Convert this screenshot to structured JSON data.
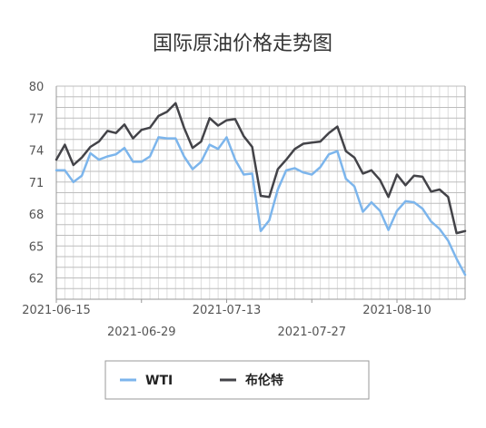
{
  "chart_data": {
    "type": "line",
    "title": "国际原油价格走势图",
    "xlabel": "",
    "ylabel": "",
    "ylim": [
      60,
      80
    ],
    "yticks": [
      80,
      77,
      74,
      71,
      68,
      65,
      62
    ],
    "x_tick_labels": [
      "2021-06-15",
      "2021-06-29",
      "2021-07-13",
      "2021-07-27",
      "2021-08-10"
    ],
    "x_tick_indices": [
      0,
      10,
      20,
      30,
      40
    ],
    "grid": true,
    "legend_position": "bottom",
    "x": [
      "2021-06-15",
      "2021-06-16",
      "2021-06-17",
      "2021-06-18",
      "2021-06-21",
      "2021-06-22",
      "2021-06-23",
      "2021-06-24",
      "2021-06-25",
      "2021-06-28",
      "2021-06-29",
      "2021-06-30",
      "2021-07-01",
      "2021-07-02",
      "2021-07-05",
      "2021-07-06",
      "2021-07-07",
      "2021-07-08",
      "2021-07-09",
      "2021-07-12",
      "2021-07-13",
      "2021-07-14",
      "2021-07-15",
      "2021-07-16",
      "2021-07-19",
      "2021-07-20",
      "2021-07-21",
      "2021-07-22",
      "2021-07-23",
      "2021-07-26",
      "2021-07-27",
      "2021-07-28",
      "2021-07-29",
      "2021-07-30",
      "2021-08-02",
      "2021-08-03",
      "2021-08-04",
      "2021-08-05",
      "2021-08-06",
      "2021-08-09",
      "2021-08-10",
      "2021-08-11",
      "2021-08-12",
      "2021-08-13",
      "2021-08-16",
      "2021-08-17",
      "2021-08-18",
      "2021-08-19",
      "2021-08-20"
    ],
    "series": [
      {
        "name": "WTI",
        "color": "#7cb5ec",
        "values": [
          72.1,
          72.1,
          71.0,
          71.6,
          73.7,
          73.1,
          73.4,
          73.6,
          74.2,
          72.9,
          72.9,
          73.4,
          75.2,
          75.1,
          75.1,
          73.4,
          72.2,
          72.9,
          74.5,
          74.1,
          75.2,
          73.1,
          71.7,
          71.8,
          66.4,
          67.4,
          70.3,
          72.1,
          72.3,
          71.9,
          71.7,
          72.4,
          73.6,
          73.9,
          71.3,
          70.6,
          68.2,
          69.1,
          68.3,
          66.5,
          68.3,
          69.2,
          69.1,
          68.5,
          67.3,
          66.6,
          65.5,
          63.8,
          62.3
        ]
      },
      {
        "name": "布伦特",
        "color": "#434348",
        "values": [
          73.1,
          74.5,
          72.6,
          73.3,
          74.3,
          74.8,
          75.8,
          75.6,
          76.4,
          75.1,
          75.9,
          76.1,
          77.2,
          77.6,
          78.4,
          76.1,
          74.2,
          74.8,
          77.0,
          76.3,
          76.8,
          76.9,
          75.3,
          74.3,
          69.7,
          69.6,
          72.2,
          73.1,
          74.1,
          74.6,
          74.7,
          74.8,
          75.6,
          76.2,
          73.9,
          73.3,
          71.8,
          72.1,
          71.2,
          69.6,
          71.7,
          70.7,
          71.6,
          71.5,
          70.1,
          70.3,
          69.6,
          66.2,
          66.4
        ]
      }
    ]
  }
}
